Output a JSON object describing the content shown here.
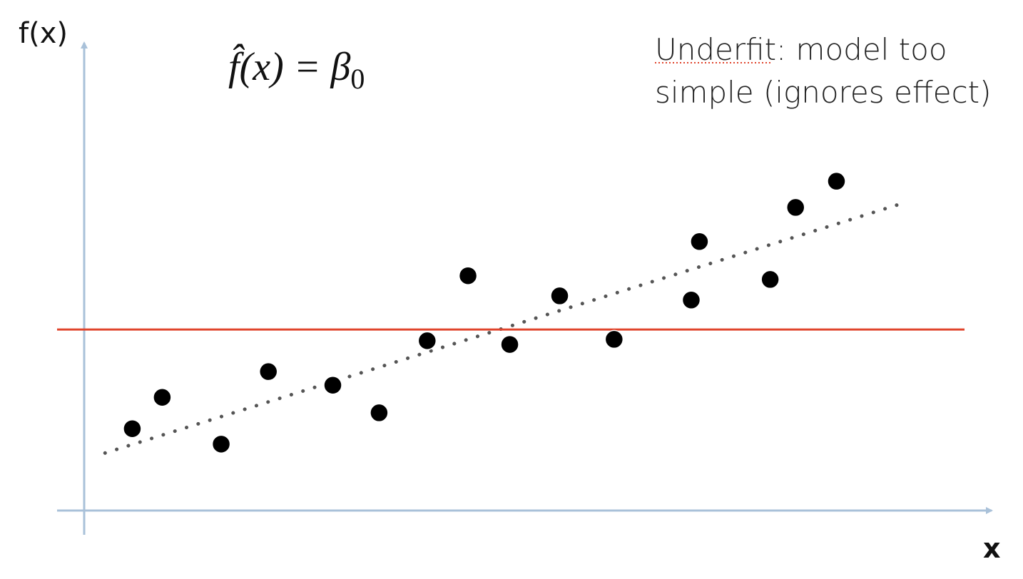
{
  "chart_data": {
    "type": "scatter",
    "y_label": "f(x)",
    "x_label": "x",
    "formula": {
      "main": "f̂(x) = β",
      "subscript": "0"
    },
    "annotation": [
      "Underfit: model too",
      "simple (ignores effect)"
    ],
    "xlim": [
      0,
      100
    ],
    "ylim": [
      0,
      100
    ],
    "points": {
      "color": "#000000",
      "x": [
        5.3,
        8.6,
        15.1,
        20.3,
        27.4,
        32.5,
        37.8,
        42.3,
        46.9,
        52.4,
        58.4,
        66.9,
        67.8,
        75.6,
        78.4,
        82.9
      ],
      "y": [
        17.5,
        24.2,
        14.2,
        29.7,
        26.8,
        20.9,
        36.3,
        50.2,
        35.5,
        45.9,
        36.6,
        45.0,
        57.5,
        49.4,
        64.8,
        70.4
      ]
    },
    "fit_line": {
      "value": 38.7,
      "color": "#e0442c"
    },
    "trend": {
      "x": [
        2.3,
        90.7
      ],
      "values": [
        12.3,
        66.0
      ],
      "color": "#555555"
    }
  }
}
